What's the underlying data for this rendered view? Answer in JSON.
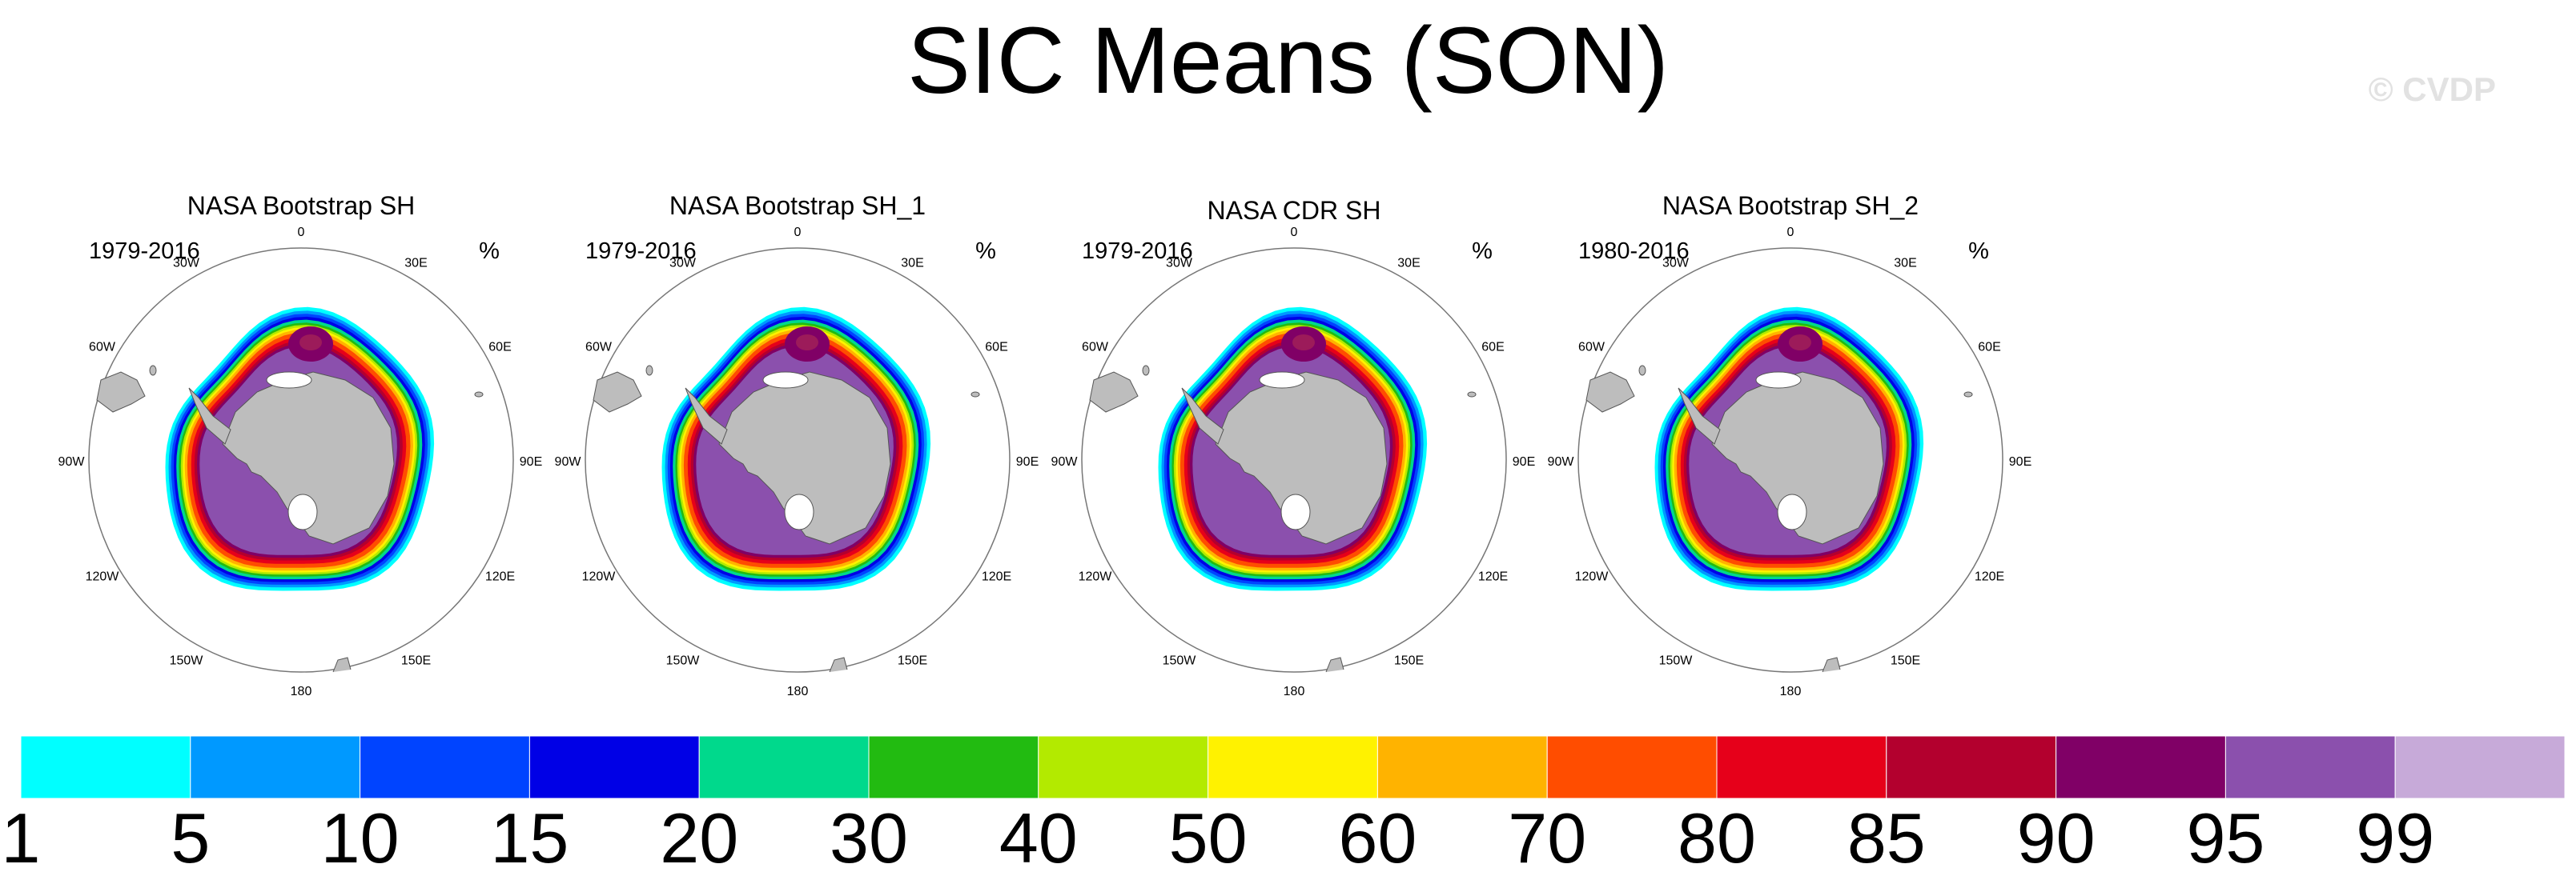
{
  "title": "SIC Means (SON)",
  "watermark": "© CVDP",
  "chart_data": {
    "type": "heatmap",
    "description_units": "%",
    "panels": [
      {
        "title": "NASA Bootstrap SH",
        "period": "1979-2016",
        "units": "%"
      },
      {
        "title": "NASA Bootstrap SH_1",
        "period": "1979-2016",
        "units": "%"
      },
      {
        "title": "NASA CDR SH",
        "period": "1979-2016",
        "units": "%"
      },
      {
        "title": "NASA Bootstrap SH_2",
        "period": "1980-2016",
        "units": "%"
      }
    ],
    "longitude_labels": [
      "0",
      "30E",
      "60E",
      "90E",
      "120E",
      "150E",
      "180",
      "150W",
      "120W",
      "90W",
      "60W",
      "30W"
    ],
    "colorbar": {
      "levels": [
        "1",
        "5",
        "10",
        "15",
        "20",
        "30",
        "40",
        "50",
        "60",
        "70",
        "80",
        "85",
        "90",
        "95",
        "99"
      ],
      "colors": [
        "#00ffff",
        "#0099ff",
        "#0044ff",
        "#0000e6",
        "#00d98c",
        "#22bb11",
        "#b3ea00",
        "#fff200",
        "#ffb300",
        "#ff4d00",
        "#e6001a",
        "#b3002e",
        "#800066",
        "#8b50ad",
        "#c7aad9"
      ]
    }
  }
}
